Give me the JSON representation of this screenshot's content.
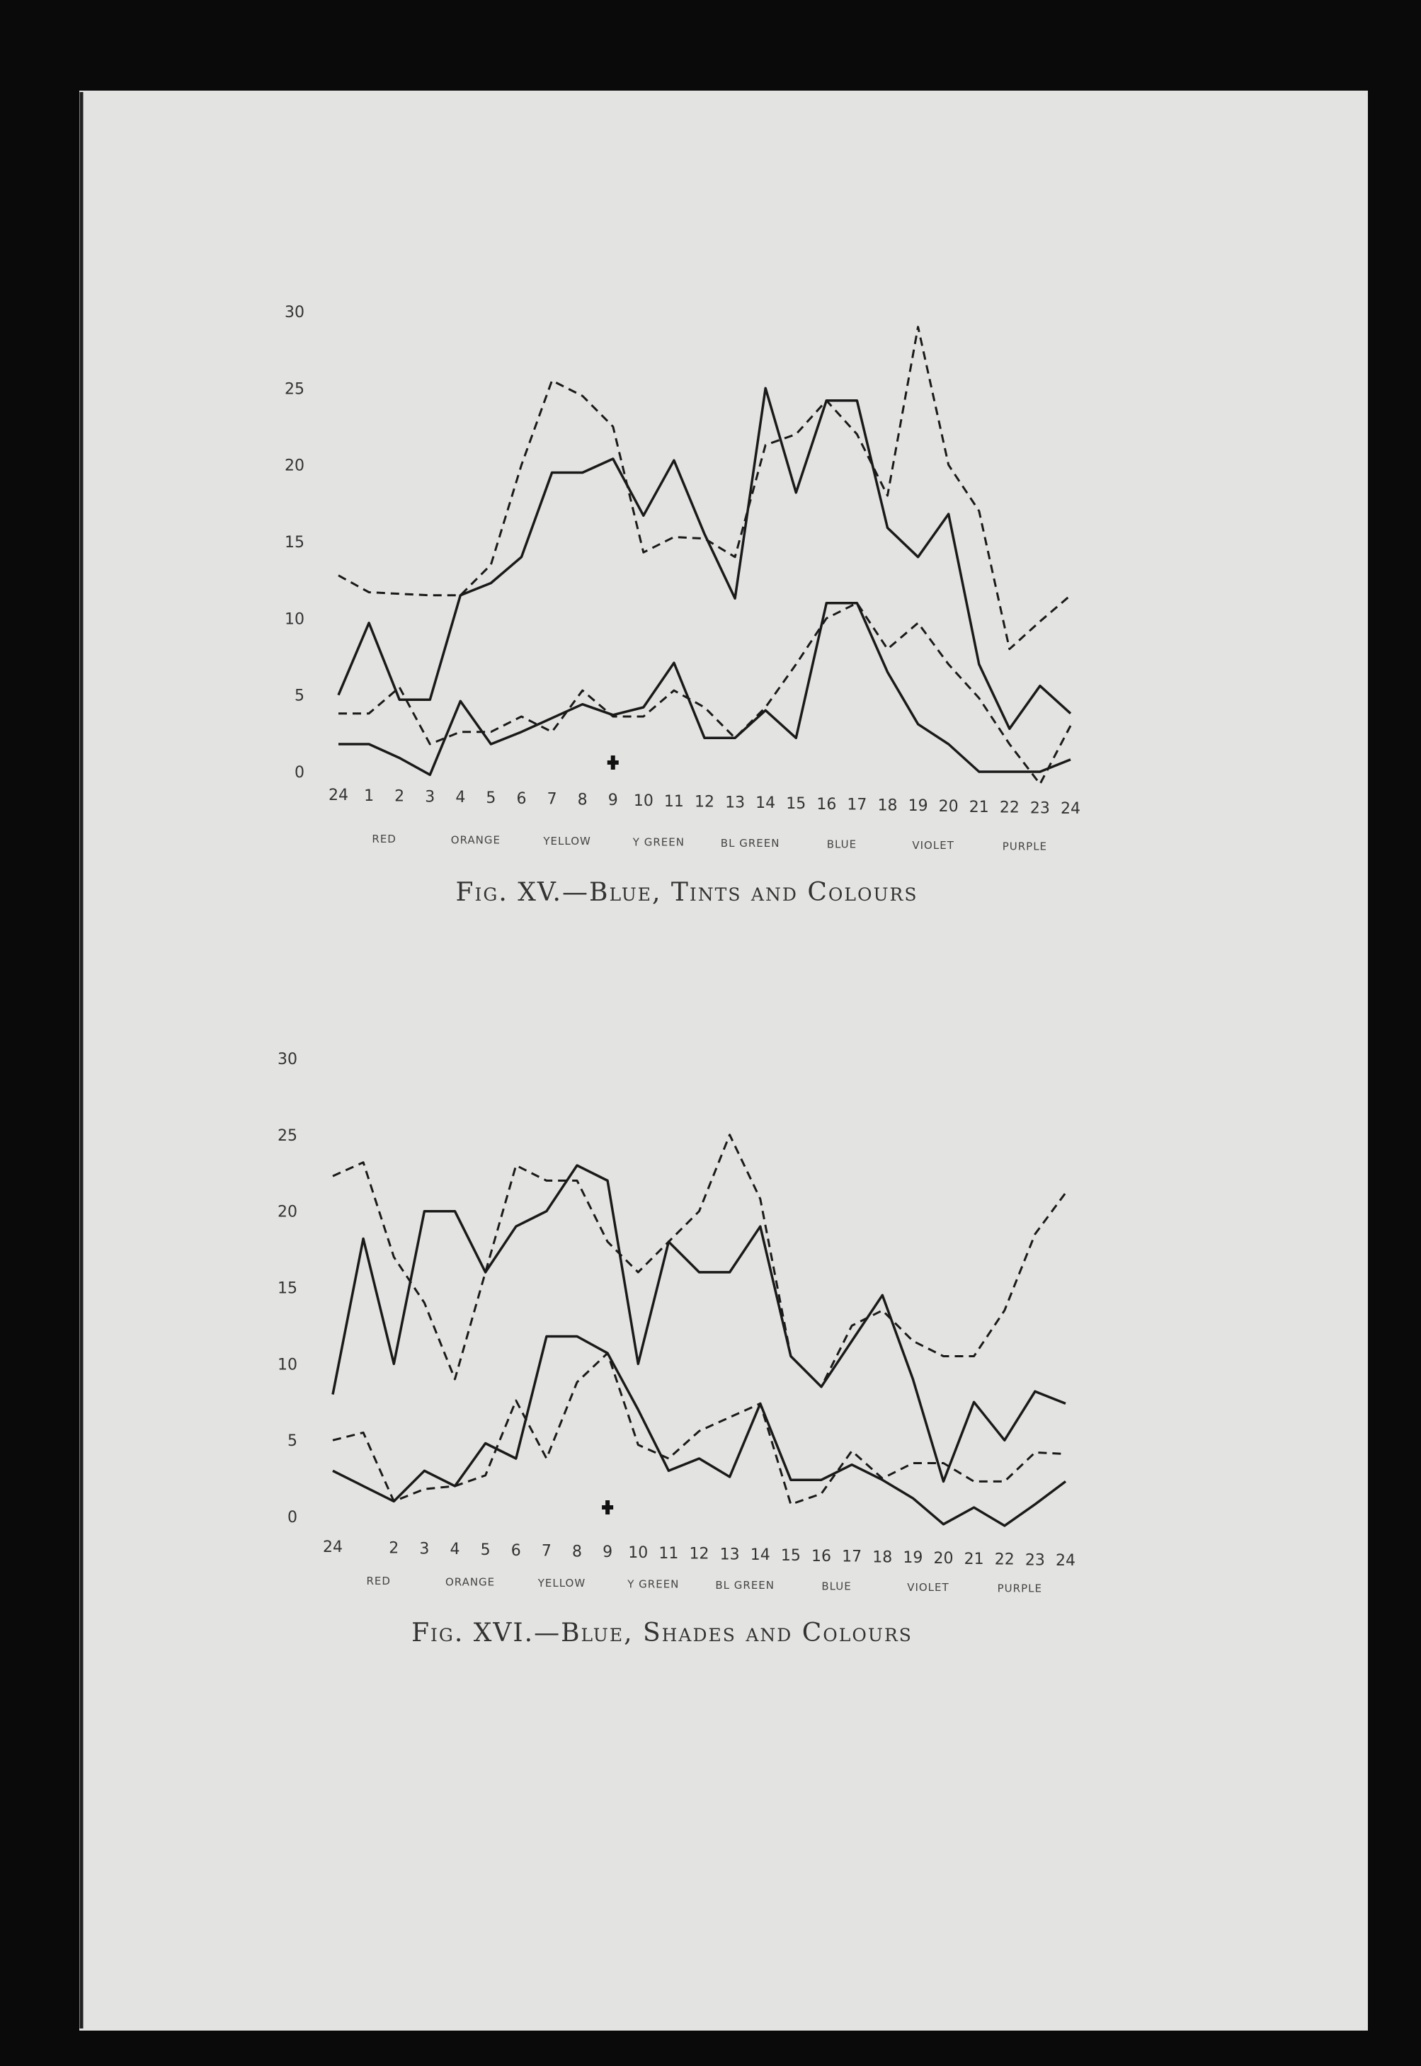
{
  "chart_data": [
    {
      "type": "line",
      "title": "Fig. XV.—Blue, Tints and Colours",
      "x_tick_labels": [
        "24",
        "1",
        "2",
        "3",
        "4",
        "5",
        "6",
        "7",
        "8",
        "9",
        "10",
        "11",
        "12",
        "13",
        "14",
        "15",
        "16",
        "17",
        "18",
        "19",
        "20",
        "21",
        "22",
        "23",
        "24"
      ],
      "y_tick_labels": [
        "0",
        "5",
        "10",
        "15",
        "20",
        "25",
        "30"
      ],
      "ylim": [
        0,
        30
      ],
      "category_labels": [
        "RED",
        "ORANGE",
        "YELLOW",
        "Y GREEN",
        "BL GREEN",
        "BLUE",
        "VIOLET",
        "PURPLE"
      ],
      "grid": false,
      "series": [
        {
          "style": "solid",
          "values": [
            5,
            9.7,
            4.7,
            4.7,
            11.5,
            12.3,
            14,
            19.5,
            19.5,
            20.4,
            16.7,
            20.3,
            15.5,
            11.3,
            25,
            18.2,
            24.2,
            24.2,
            15.9,
            14,
            16.8,
            7,
            2.8,
            5.6,
            3.8
          ]
        },
        {
          "style": "dashed",
          "values": [
            12.8,
            11.7,
            11.6,
            11.5,
            11.5,
            13.5,
            20,
            25.5,
            24.5,
            22.5,
            14.3,
            15.3,
            15.2,
            14,
            21.3,
            22,
            24.2,
            22,
            18,
            29,
            20,
            17,
            8,
            9.8,
            11.5
          ]
        },
        {
          "style": "solid",
          "values": [
            1.8,
            1.8,
            0.9,
            -0.2,
            4.6,
            1.8,
            2.6,
            3.5,
            4.4,
            3.7,
            4.2,
            7.1,
            2.2,
            2.2,
            4,
            2.2,
            11,
            11,
            6.5,
            3.1,
            1.8,
            0,
            0,
            0,
            0.8
          ]
        },
        {
          "style": "dashed",
          "values": [
            3.8,
            3.8,
            5.5,
            1.8,
            2.6,
            2.6,
            3.6,
            2.6,
            5.3,
            3.6,
            3.6,
            5.3,
            4.2,
            2.2,
            4.2,
            7,
            10,
            11,
            8,
            9.7,
            7,
            4.8,
            1.8,
            -0.8,
            3
          ]
        }
      ]
    },
    {
      "type": "line",
      "title": "Fig. XVI.—Blue, Shades and Colours",
      "x_tick_labels": [
        "24",
        "",
        "2",
        "3",
        "4",
        "5",
        "6",
        "7",
        "8",
        "9",
        "10",
        "11",
        "12",
        "13",
        "14",
        "15",
        "16",
        "17",
        "18",
        "19",
        "20",
        "21",
        "22",
        "23",
        "24"
      ],
      "y_tick_labels": [
        "0",
        "5",
        "10",
        "15",
        "20",
        "25",
        "30"
      ],
      "ylim": [
        0,
        30
      ],
      "category_labels": [
        "RED",
        "ORANGE",
        "YELLOW",
        "Y GREEN",
        "BL GREEN",
        "BLUE",
        "VIOLET",
        "PURPLE"
      ],
      "grid": false,
      "series": [
        {
          "style": "solid",
          "values": [
            8,
            18.2,
            10,
            20,
            20,
            16,
            19,
            20,
            23,
            22,
            10,
            18,
            16,
            16,
            19,
            10.5,
            8.5,
            11.5,
            14.5,
            9,
            2.3,
            7.5,
            5,
            8.2,
            7.4
          ]
        },
        {
          "style": "dashed",
          "values": [
            22.3,
            23.2,
            17,
            14,
            9,
            16,
            23,
            22,
            22,
            18,
            16,
            18,
            20,
            25,
            20.8,
            10.5,
            8.5,
            12.5,
            13.5,
            11.5,
            10.5,
            10.5,
            13.5,
            18.5,
            21.2
          ]
        },
        {
          "style": "solid",
          "values": [
            3,
            2,
            1,
            3,
            2,
            4.8,
            3.8,
            11.8,
            11.8,
            10.7,
            7,
            3,
            3.8,
            2.6,
            7.4,
            2.4,
            2.4,
            3.4,
            2.4,
            1.2,
            -0.5,
            0.6,
            -0.6,
            0.8,
            2.3
          ]
        },
        {
          "style": "dashed",
          "values": [
            5,
            5.5,
            1,
            1.8,
            2,
            2.7,
            7.6,
            3.8,
            8.8,
            10.7,
            4.7,
            3.8,
            5.6,
            6.5,
            7.4,
            0.8,
            1.5,
            4.3,
            2.5,
            3.5,
            3.5,
            2.3,
            2.3,
            4.2,
            4.1
          ]
        }
      ]
    }
  ],
  "colors": {
    "page": "#e3e3e1",
    "ink": "#1a1a1a",
    "background": "#0a0a0a"
  }
}
